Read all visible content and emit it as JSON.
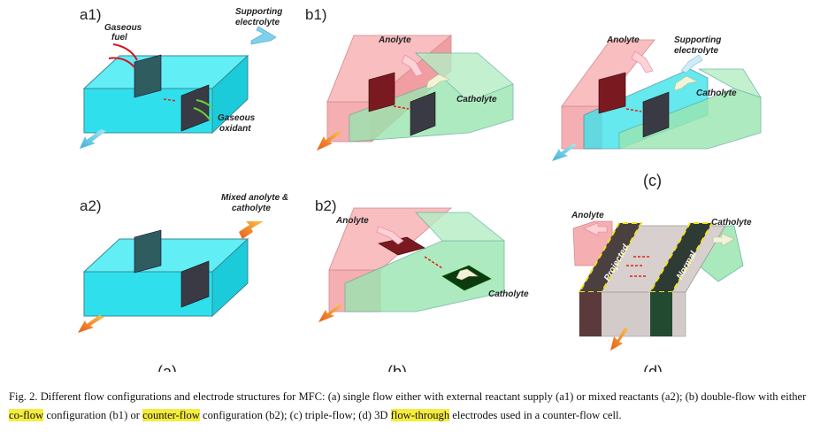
{
  "panels": {
    "a1": {
      "label": "a1)",
      "gaseous_fuel": [
        "Gaseous",
        "fuel"
      ],
      "supporting_electrolyte": [
        "Supporting",
        "electrolyte"
      ],
      "gaseous_oxidant": [
        "Gaseous",
        "oxidant"
      ]
    },
    "a2": {
      "label": "a2)",
      "mixed": [
        "Mixed anolyte &",
        "catholyte"
      ]
    },
    "b1": {
      "label": "b1)",
      "anolyte": "Anolyte",
      "catholyte": "Catholyte"
    },
    "b2": {
      "label": "b2)",
      "anolyte": "Anolyte",
      "catholyte": "Catholyte"
    },
    "c": {
      "anolyte": "Anolyte",
      "supporting_electrolyte": [
        "Supporting",
        "electrolyte"
      ],
      "catholyte": "Catholyte"
    },
    "d": {
      "anolyte": "Anolyte",
      "catholyte": "Catholyte",
      "projected": "Projected",
      "normal": "Normal"
    }
  },
  "sublabels": {
    "a": "(a)",
    "b": "(b)",
    "c": "(c)",
    "d": "(d)"
  },
  "caption": {
    "lead": "Fig. 2.  Different flow configurations and electrode structures for MFC: (a) single flow either with external reactant supply (a1) or mixed reactants (a2); (b) double-flow with either ",
    "hl1": "co-flow",
    "mid1": " configuration (b1) or ",
    "hl2": "counter-flow",
    "mid2": " configuration (b2); (c) triple-flow; (d) 3D ",
    "hl3": "flow-through",
    "tail": " electrodes used in a counter-flow cell."
  },
  "colors": {
    "electrolyte": "#34e6ef",
    "anolyte": "#f39a9d",
    "catholyte": "#8fe3a8",
    "electrode": "#3a3a44",
    "arrow_out": "#f07a1a"
  }
}
